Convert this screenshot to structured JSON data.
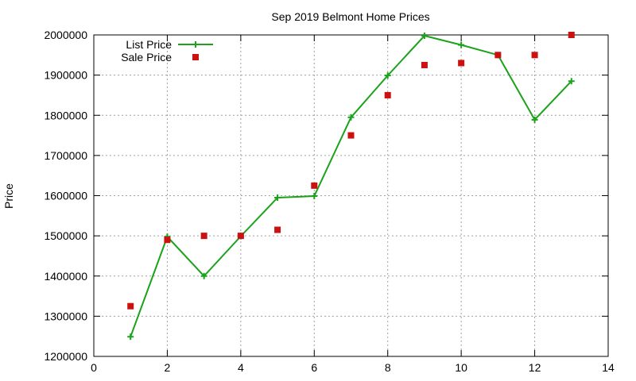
{
  "chart_data": {
    "type": "line",
    "title": "Sep 2019 Belmont Home Prices",
    "xlabel": "",
    "ylabel": "Price",
    "xlim": [
      0,
      14
    ],
    "ylim": [
      1200000,
      2000000
    ],
    "xticks": [
      0,
      2,
      4,
      6,
      8,
      10,
      12,
      14
    ],
    "yticks": [
      1200000,
      1300000,
      1400000,
      1500000,
      1600000,
      1700000,
      1800000,
      1900000,
      2000000
    ],
    "grid": true,
    "legend_position": "top-left",
    "series": [
      {
        "name": "List Price",
        "style": "line-with-plus-markers",
        "color": "#1aa31a",
        "x": [
          1,
          2,
          3,
          4,
          5,
          6,
          7,
          8,
          9,
          10,
          11,
          12,
          13
        ],
        "values": [
          1249000,
          1498000,
          1400000,
          1499000,
          1595000,
          1599000,
          1795000,
          1899000,
          1998000,
          1975000,
          1950000,
          1789000,
          1885000
        ]
      },
      {
        "name": "Sale Price",
        "style": "square-markers",
        "color": "#cc1111",
        "x": [
          1,
          2,
          3,
          4,
          5,
          6,
          7,
          8,
          9,
          10,
          11,
          12,
          13
        ],
        "values": [
          1325000,
          1490000,
          1500000,
          1500000,
          1515000,
          1625000,
          1750000,
          1850000,
          1925000,
          1930000,
          1950000,
          1950000,
          2000000
        ]
      }
    ]
  }
}
